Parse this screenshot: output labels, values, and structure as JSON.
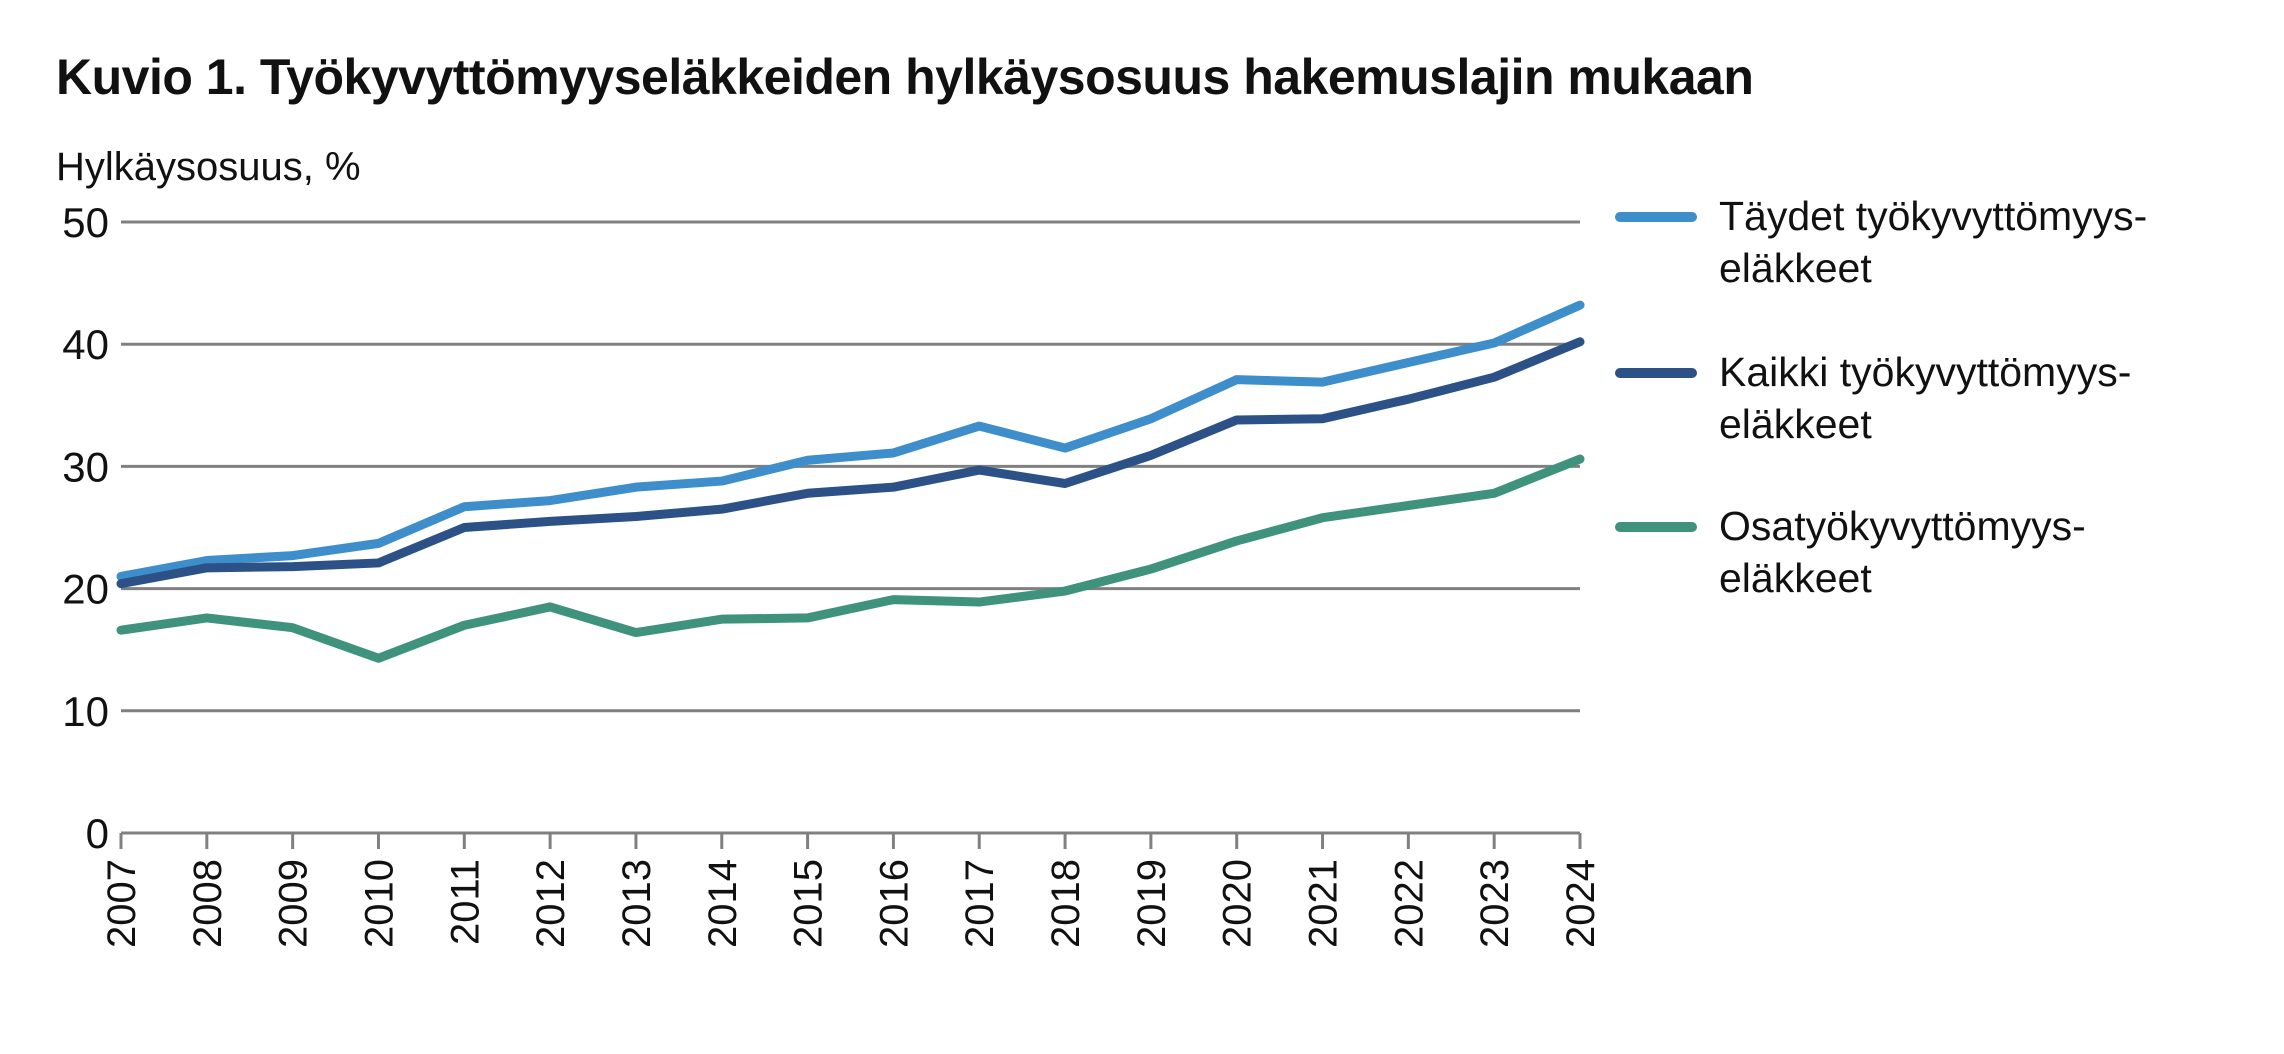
{
  "chart_data": {
    "type": "line",
    "title": "Kuvio 1. Työkyvyttömyyseläkkeiden hylkäysosuus hakemuslajin mukaan",
    "xlabel": "",
    "ylabel": "Hylkäysosuus, %",
    "ylim": [
      0,
      50
    ],
    "yticks": [
      "0",
      "10",
      "20",
      "30",
      "40",
      "50"
    ],
    "grid": true,
    "legend_position": "right",
    "x": [
      "2007",
      "2008",
      "2009",
      "2010",
      "2011",
      "2012",
      "2013",
      "2014",
      "2015",
      "2016",
      "2017",
      "2018",
      "2019",
      "2020",
      "2021",
      "2022",
      "2023",
      "2024"
    ],
    "series": [
      {
        "name": "Täydet työkyvyttömyyseläkkeet",
        "legend_lines": [
          "Täydet työkyvyttömyys-",
          "eläkkeet"
        ],
        "color": "#3d8ecb",
        "values": [
          21.0,
          22.3,
          22.7,
          23.7,
          26.7,
          27.2,
          28.3,
          28.8,
          30.5,
          31.1,
          33.3,
          31.5,
          33.9,
          37.1,
          36.9,
          38.5,
          40.1,
          43.2
        ]
      },
      {
        "name": "Kaikki työkyvyttömyyseläkkeet",
        "legend_lines": [
          "Kaikki työkyvyttömyys-",
          "eläkkeet"
        ],
        "color": "#2c5186",
        "values": [
          20.4,
          21.7,
          21.8,
          22.1,
          25.0,
          25.5,
          25.9,
          26.5,
          27.8,
          28.3,
          29.7,
          28.6,
          30.9,
          33.8,
          33.9,
          35.5,
          37.3,
          40.2
        ]
      },
      {
        "name": "Osatyökyvyttömyyseläkkeet",
        "legend_lines": [
          "Osatyökyvyttömyys-",
          "eläkkeet"
        ],
        "color": "#3f927b",
        "values": [
          16.6,
          17.6,
          16.8,
          14.3,
          17.0,
          18.5,
          16.4,
          17.5,
          17.6,
          19.1,
          18.9,
          19.8,
          21.6,
          23.9,
          25.8,
          26.8,
          27.8,
          30.6
        ]
      }
    ]
  }
}
